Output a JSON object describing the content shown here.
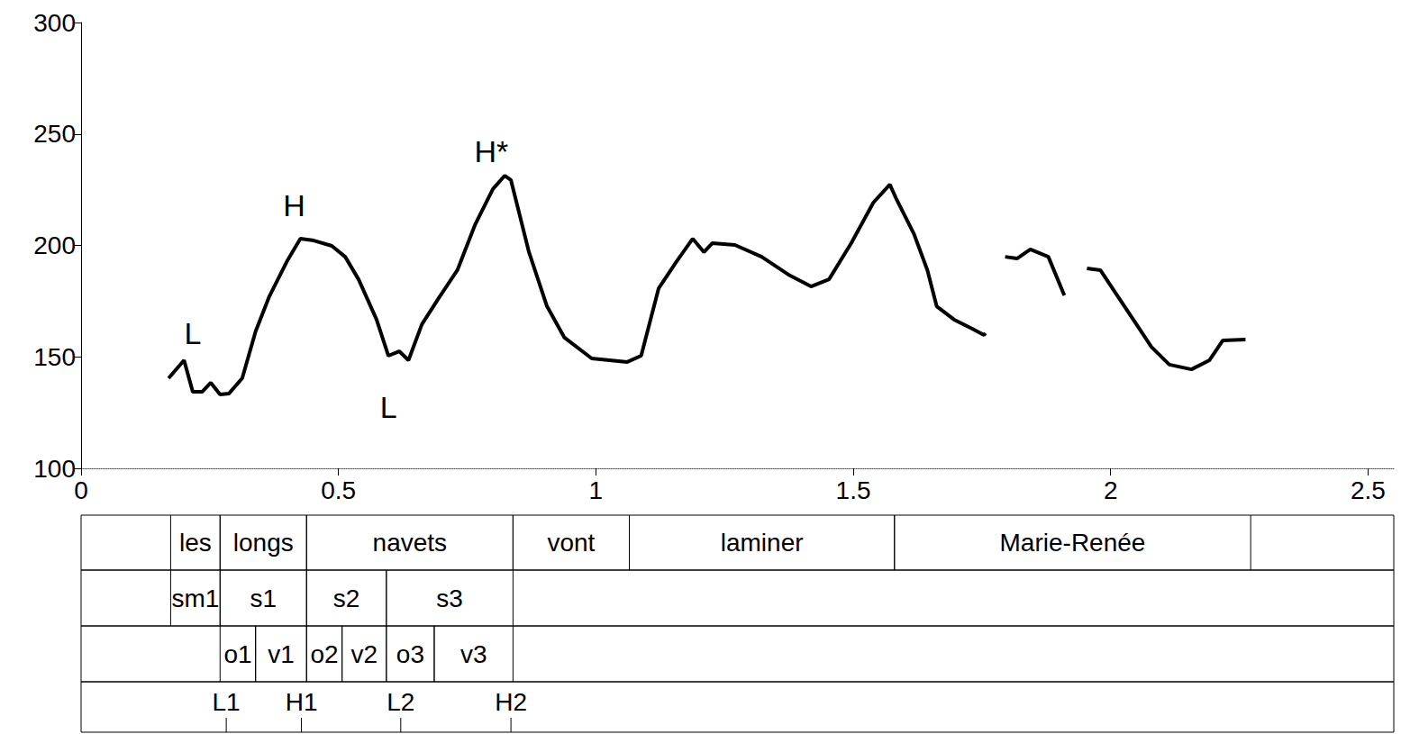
{
  "chart_data": {
    "type": "line",
    "color": "#000000",
    "xlim": [
      0,
      2.55
    ],
    "xticks": [
      0,
      0.5,
      1,
      1.5,
      2,
      2.5
    ],
    "ylim": [
      100,
      300
    ],
    "yticks": [
      100,
      150,
      200,
      250,
      300
    ],
    "grid": false,
    "x": [
      0.17,
      0.2,
      0.217,
      0.235,
      0.252,
      0.27,
      0.287,
      0.313,
      0.339,
      0.365,
      0.4,
      0.426,
      0.452,
      0.487,
      0.513,
      0.539,
      0.574,
      0.597,
      0.618,
      0.636,
      0.662,
      0.696,
      0.731,
      0.765,
      0.8,
      0.823,
      0.835,
      0.87,
      0.905,
      0.939,
      0.992,
      1.061,
      1.088,
      1.122,
      1.157,
      1.188,
      1.21,
      1.226,
      1.27,
      1.322,
      1.374,
      1.418,
      1.453,
      1.496,
      1.539,
      1.571,
      1.583,
      1.618,
      1.644,
      1.662,
      1.696,
      1.731,
      1.754,
      1.757,
      1.776,
      1.795,
      1.818,
      1.844,
      1.879,
      1.91,
      1.932,
      1.954,
      1.98,
      2.009,
      2.044,
      2.079,
      2.114,
      2.157,
      2.192,
      2.218,
      2.262
    ],
    "values": [
      140.4,
      148.5,
      134.3,
      134.3,
      138.4,
      133.1,
      133.5,
      140.4,
      161.4,
      176.8,
      192.9,
      203.0,
      202.2,
      199.8,
      194.9,
      184.8,
      166.7,
      150.5,
      152.5,
      148.5,
      164.6,
      176.8,
      188.9,
      209.1,
      225.3,
      231.3,
      229.3,
      197.0,
      172.7,
      158.6,
      149.3,
      147.7,
      150.5,
      180.8,
      192.9,
      203.0,
      197.0,
      201.0,
      200.2,
      194.9,
      186.9,
      181.6,
      184.8,
      201.0,
      219.2,
      227.3,
      221.2,
      205.1,
      188.9,
      172.7,
      166.7,
      162.6,
      159.8,
      160.6,
      null,
      194.9,
      194.1,
      198.2,
      194.9,
      177.6,
      null,
      189.7,
      188.9,
      178.8,
      166.7,
      154.5,
      146.5,
      144.4,
      148.5,
      157.4,
      157.8
    ],
    "annotations": [
      {
        "text": "L",
        "x": 0.217,
        "y": 160.6
      },
      {
        "text": "H",
        "x": 0.414,
        "y": 218.0
      },
      {
        "text": "L",
        "x": 0.597,
        "y": 127.5
      },
      {
        "text": "H*",
        "x": 0.797,
        "y": 242.2
      }
    ],
    "tiers": [
      {
        "type": "interval",
        "intervals": [
          {
            "start": 0.174,
            "end": 0.27,
            "label": "les"
          },
          {
            "start": 0.27,
            "end": 0.438,
            "label": "longs"
          },
          {
            "start": 0.438,
            "end": 0.839,
            "label": "navets"
          },
          {
            "start": 0.839,
            "end": 1.065,
            "label": "vont"
          },
          {
            "start": 1.065,
            "end": 1.58,
            "label": "laminer"
          },
          {
            "start": 1.58,
            "end": 2.272,
            "label": "Marie-Renée"
          }
        ]
      },
      {
        "type": "interval",
        "intervals": [
          {
            "start": 0.174,
            "end": 0.27,
            "label": "sm1"
          },
          {
            "start": 0.27,
            "end": 0.438,
            "label": "s1"
          },
          {
            "start": 0.438,
            "end": 0.593,
            "label": "s2"
          },
          {
            "start": 0.593,
            "end": 0.839,
            "label": "s3"
          }
        ]
      },
      {
        "type": "interval",
        "intervals": [
          {
            "start": 0.27,
            "end": 0.339,
            "label": "o1"
          },
          {
            "start": 0.339,
            "end": 0.438,
            "label": "v1"
          },
          {
            "start": 0.438,
            "end": 0.507,
            "label": "o2"
          },
          {
            "start": 0.507,
            "end": 0.593,
            "label": "v2"
          },
          {
            "start": 0.593,
            "end": 0.686,
            "label": "o3"
          },
          {
            "start": 0.686,
            "end": 0.839,
            "label": "v3"
          }
        ]
      },
      {
        "type": "point",
        "points": [
          {
            "time": 0.282,
            "label": "L1"
          },
          {
            "time": 0.428,
            "label": "H1"
          },
          {
            "time": 0.621,
            "label": "L2"
          },
          {
            "time": 0.835,
            "label": "H2"
          }
        ]
      }
    ]
  }
}
